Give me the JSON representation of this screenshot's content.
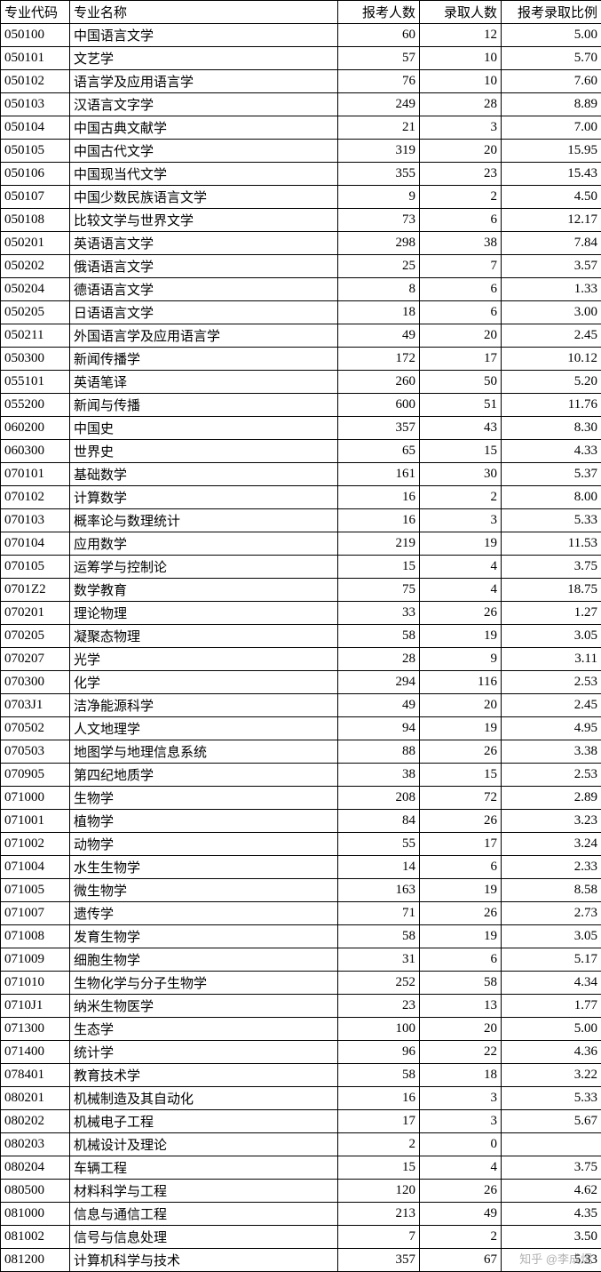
{
  "table": {
    "headers": {
      "code": "专业代码",
      "name": "专业名称",
      "applicants": "报考人数",
      "admitted": "录取人数",
      "ratio": "报考录取比例"
    },
    "rows": [
      {
        "code": "050100",
        "name": "中国语言文学",
        "applicants": "60",
        "admitted": "12",
        "ratio": "5.00"
      },
      {
        "code": "050101",
        "name": "文艺学",
        "applicants": "57",
        "admitted": "10",
        "ratio": "5.70"
      },
      {
        "code": "050102",
        "name": "语言学及应用语言学",
        "applicants": "76",
        "admitted": "10",
        "ratio": "7.60"
      },
      {
        "code": "050103",
        "name": "汉语言文字学",
        "applicants": "249",
        "admitted": "28",
        "ratio": "8.89"
      },
      {
        "code": "050104",
        "name": "中国古典文献学",
        "applicants": "21",
        "admitted": "3",
        "ratio": "7.00"
      },
      {
        "code": "050105",
        "name": "中国古代文学",
        "applicants": "319",
        "admitted": "20",
        "ratio": "15.95"
      },
      {
        "code": "050106",
        "name": "中国现当代文学",
        "applicants": "355",
        "admitted": "23",
        "ratio": "15.43"
      },
      {
        "code": "050107",
        "name": "中国少数民族语言文学",
        "applicants": "9",
        "admitted": "2",
        "ratio": "4.50"
      },
      {
        "code": "050108",
        "name": "比较文学与世界文学",
        "applicants": "73",
        "admitted": "6",
        "ratio": "12.17"
      },
      {
        "code": "050201",
        "name": "英语语言文学",
        "applicants": "298",
        "admitted": "38",
        "ratio": "7.84"
      },
      {
        "code": "050202",
        "name": "俄语语言文学",
        "applicants": "25",
        "admitted": "7",
        "ratio": "3.57"
      },
      {
        "code": "050204",
        "name": "德语语言文学",
        "applicants": "8",
        "admitted": "6",
        "ratio": "1.33"
      },
      {
        "code": "050205",
        "name": "日语语言文学",
        "applicants": "18",
        "admitted": "6",
        "ratio": "3.00"
      },
      {
        "code": "050211",
        "name": "外国语言学及应用语言学",
        "applicants": "49",
        "admitted": "20",
        "ratio": "2.45"
      },
      {
        "code": "050300",
        "name": "新闻传播学",
        "applicants": "172",
        "admitted": "17",
        "ratio": "10.12"
      },
      {
        "code": "055101",
        "name": "英语笔译",
        "applicants": "260",
        "admitted": "50",
        "ratio": "5.20"
      },
      {
        "code": "055200",
        "name": "新闻与传播",
        "applicants": "600",
        "admitted": "51",
        "ratio": "11.76"
      },
      {
        "code": "060200",
        "name": "中国史",
        "applicants": "357",
        "admitted": "43",
        "ratio": "8.30"
      },
      {
        "code": "060300",
        "name": "世界史",
        "applicants": "65",
        "admitted": "15",
        "ratio": "4.33"
      },
      {
        "code": "070101",
        "name": "基础数学",
        "applicants": "161",
        "admitted": "30",
        "ratio": "5.37"
      },
      {
        "code": "070102",
        "name": "计算数学",
        "applicants": "16",
        "admitted": "2",
        "ratio": "8.00"
      },
      {
        "code": "070103",
        "name": "概率论与数理统计",
        "applicants": "16",
        "admitted": "3",
        "ratio": "5.33"
      },
      {
        "code": "070104",
        "name": "应用数学",
        "applicants": "219",
        "admitted": "19",
        "ratio": "11.53"
      },
      {
        "code": "070105",
        "name": "运筹学与控制论",
        "applicants": "15",
        "admitted": "4",
        "ratio": "3.75"
      },
      {
        "code": "0701Z2",
        "name": "数学教育",
        "applicants": "75",
        "admitted": "4",
        "ratio": "18.75"
      },
      {
        "code": "070201",
        "name": "理论物理",
        "applicants": "33",
        "admitted": "26",
        "ratio": "1.27"
      },
      {
        "code": "070205",
        "name": "凝聚态物理",
        "applicants": "58",
        "admitted": "19",
        "ratio": "3.05"
      },
      {
        "code": "070207",
        "name": "光学",
        "applicants": "28",
        "admitted": "9",
        "ratio": "3.11"
      },
      {
        "code": "070300",
        "name": "化学",
        "applicants": "294",
        "admitted": "116",
        "ratio": "2.53"
      },
      {
        "code": "0703J1",
        "name": "洁净能源科学",
        "applicants": "49",
        "admitted": "20",
        "ratio": "2.45"
      },
      {
        "code": "070502",
        "name": "人文地理学",
        "applicants": "94",
        "admitted": "19",
        "ratio": "4.95"
      },
      {
        "code": "070503",
        "name": "地图学与地理信息系统",
        "applicants": "88",
        "admitted": "26",
        "ratio": "3.38"
      },
      {
        "code": "070905",
        "name": "第四纪地质学",
        "applicants": "38",
        "admitted": "15",
        "ratio": "2.53"
      },
      {
        "code": "071000",
        "name": "生物学",
        "applicants": "208",
        "admitted": "72",
        "ratio": "2.89"
      },
      {
        "code": "071001",
        "name": "植物学",
        "applicants": "84",
        "admitted": "26",
        "ratio": "3.23"
      },
      {
        "code": "071002",
        "name": "动物学",
        "applicants": "55",
        "admitted": "17",
        "ratio": "3.24"
      },
      {
        "code": "071004",
        "name": "水生生物学",
        "applicants": "14",
        "admitted": "6",
        "ratio": "2.33"
      },
      {
        "code": "071005",
        "name": "微生物学",
        "applicants": "163",
        "admitted": "19",
        "ratio": "8.58"
      },
      {
        "code": "071007",
        "name": "遗传学",
        "applicants": "71",
        "admitted": "26",
        "ratio": "2.73"
      },
      {
        "code": "071008",
        "name": "发育生物学",
        "applicants": "58",
        "admitted": "19",
        "ratio": "3.05"
      },
      {
        "code": "071009",
        "name": "细胞生物学",
        "applicants": "31",
        "admitted": "6",
        "ratio": "5.17"
      },
      {
        "code": "071010",
        "name": "生物化学与分子生物学",
        "applicants": "252",
        "admitted": "58",
        "ratio": "4.34"
      },
      {
        "code": "0710J1",
        "name": "纳米生物医学",
        "applicants": "23",
        "admitted": "13",
        "ratio": "1.77"
      },
      {
        "code": "071300",
        "name": "生态学",
        "applicants": "100",
        "admitted": "20",
        "ratio": "5.00"
      },
      {
        "code": "071400",
        "name": "统计学",
        "applicants": "96",
        "admitted": "22",
        "ratio": "4.36"
      },
      {
        "code": "078401",
        "name": "教育技术学",
        "applicants": "58",
        "admitted": "18",
        "ratio": "3.22"
      },
      {
        "code": "080201",
        "name": "机械制造及其自动化",
        "applicants": "16",
        "admitted": "3",
        "ratio": "5.33"
      },
      {
        "code": "080202",
        "name": "机械电子工程",
        "applicants": "17",
        "admitted": "3",
        "ratio": "5.67"
      },
      {
        "code": "080203",
        "name": "机械设计及理论",
        "applicants": "2",
        "admitted": "0",
        "ratio": ""
      },
      {
        "code": "080204",
        "name": "车辆工程",
        "applicants": "15",
        "admitted": "4",
        "ratio": "3.75"
      },
      {
        "code": "080500",
        "name": "材料科学与工程",
        "applicants": "120",
        "admitted": "26",
        "ratio": "4.62"
      },
      {
        "code": "081000",
        "name": "信息与通信工程",
        "applicants": "213",
        "admitted": "49",
        "ratio": "4.35"
      },
      {
        "code": "081002",
        "name": "信号与信息处理",
        "applicants": "7",
        "admitted": "2",
        "ratio": "3.50"
      },
      {
        "code": "081200",
        "name": "计算机科学与技术",
        "applicants": "357",
        "admitted": "67",
        "ratio": "5.33"
      }
    ]
  },
  "watermark": "知乎 @李成煜"
}
